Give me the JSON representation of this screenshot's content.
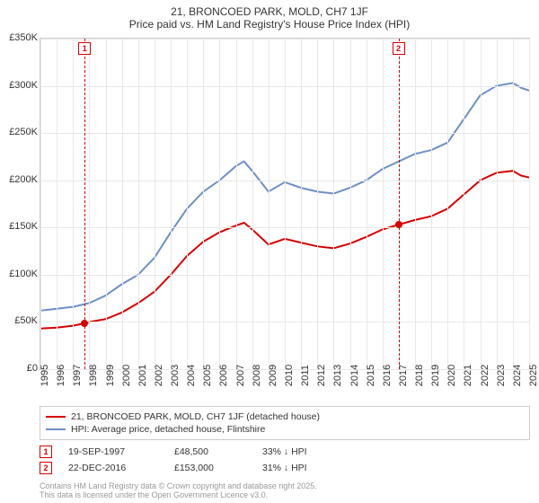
{
  "title_line1": "21, BRONCOED PARK, MOLD, CH7 1JF",
  "title_line2": "Price paid vs. HM Land Registry's House Price Index (HPI)",
  "chart": {
    "type": "line",
    "background_color": "#ffffff",
    "grid_color": "#e8e8e8",
    "border_color": "#cccccc",
    "text_color": "#333333",
    "title_fontsize": 12,
    "label_fontsize": 11,
    "y": {
      "min": 0,
      "max": 350000,
      "tick_step": 50000,
      "ticks": [
        "£0",
        "£50K",
        "£100K",
        "£150K",
        "£200K",
        "£250K",
        "£300K",
        "£350K"
      ]
    },
    "x": {
      "min": 1995,
      "max": 2025,
      "tick_step": 1,
      "ticks": [
        "1995",
        "1996",
        "1997",
        "1998",
        "1999",
        "2000",
        "2001",
        "2002",
        "2003",
        "2004",
        "2005",
        "2006",
        "2007",
        "2008",
        "2009",
        "2010",
        "2011",
        "2012",
        "2013",
        "2014",
        "2015",
        "2016",
        "2017",
        "2018",
        "2019",
        "2020",
        "2021",
        "2022",
        "2023",
        "2024",
        "2025"
      ]
    },
    "series": [
      {
        "name": "21, BRONCOED PARK, MOLD, CH7 1JF (detached house)",
        "color": "#d40000",
        "line_width": 2,
        "points": [
          [
            1995,
            43000
          ],
          [
            1996,
            44000
          ],
          [
            1997,
            46000
          ],
          [
            1997.72,
            48500
          ],
          [
            1998,
            50000
          ],
          [
            1999,
            53000
          ],
          [
            2000,
            60000
          ],
          [
            2001,
            70000
          ],
          [
            2002,
            82000
          ],
          [
            2003,
            100000
          ],
          [
            2004,
            120000
          ],
          [
            2005,
            135000
          ],
          [
            2006,
            145000
          ],
          [
            2007,
            152000
          ],
          [
            2007.5,
            155000
          ],
          [
            2008,
            148000
          ],
          [
            2009,
            132000
          ],
          [
            2010,
            138000
          ],
          [
            2011,
            134000
          ],
          [
            2012,
            130000
          ],
          [
            2013,
            128000
          ],
          [
            2014,
            133000
          ],
          [
            2015,
            140000
          ],
          [
            2016,
            148000
          ],
          [
            2016.98,
            153000
          ],
          [
            2017,
            153000
          ],
          [
            2018,
            158000
          ],
          [
            2019,
            162000
          ],
          [
            2020,
            170000
          ],
          [
            2021,
            185000
          ],
          [
            2022,
            200000
          ],
          [
            2023,
            208000
          ],
          [
            2024,
            210000
          ],
          [
            2024.5,
            205000
          ],
          [
            2025,
            203000
          ]
        ]
      },
      {
        "name": "HPI: Average price, detached house, Flintshire",
        "color": "#6d8fc6",
        "line_width": 2,
        "points": [
          [
            1995,
            62000
          ],
          [
            1996,
            64000
          ],
          [
            1997,
            66000
          ],
          [
            1998,
            70000
          ],
          [
            1999,
            78000
          ],
          [
            2000,
            90000
          ],
          [
            2001,
            100000
          ],
          [
            2002,
            118000
          ],
          [
            2003,
            145000
          ],
          [
            2004,
            170000
          ],
          [
            2005,
            188000
          ],
          [
            2006,
            200000
          ],
          [
            2007,
            215000
          ],
          [
            2007.5,
            220000
          ],
          [
            2008,
            210000
          ],
          [
            2009,
            188000
          ],
          [
            2010,
            198000
          ],
          [
            2011,
            192000
          ],
          [
            2012,
            188000
          ],
          [
            2013,
            186000
          ],
          [
            2014,
            192000
          ],
          [
            2015,
            200000
          ],
          [
            2016,
            212000
          ],
          [
            2017,
            220000
          ],
          [
            2018,
            228000
          ],
          [
            2019,
            232000
          ],
          [
            2020,
            240000
          ],
          [
            2021,
            265000
          ],
          [
            2022,
            290000
          ],
          [
            2023,
            300000
          ],
          [
            2024,
            303000
          ],
          [
            2024.5,
            298000
          ],
          [
            2025,
            295000
          ]
        ]
      }
    ],
    "markers": [
      {
        "num": "1",
        "x": 1997.72,
        "y": 48500,
        "color": "#d40000"
      },
      {
        "num": "2",
        "x": 2016.98,
        "y": 153000,
        "color": "#d40000"
      }
    ]
  },
  "legend": {
    "items": [
      {
        "color": "#d40000",
        "label": "21, BRONCOED PARK, MOLD, CH7 1JF (detached house)"
      },
      {
        "color": "#6d8fc6",
        "label": "HPI: Average price, detached house, Flintshire"
      }
    ]
  },
  "annotations": [
    {
      "num": "1",
      "color": "#d40000",
      "date": "19-SEP-1997",
      "price": "£48,500",
      "pct": "33% ↓ HPI"
    },
    {
      "num": "2",
      "color": "#d40000",
      "date": "22-DEC-2016",
      "price": "£153,000",
      "pct": "31% ↓ HPI"
    }
  ],
  "footer_line1": "Contains HM Land Registry data © Crown copyright and database right 2025.",
  "footer_line2": "This data is licensed under the Open Government Licence v3.0."
}
